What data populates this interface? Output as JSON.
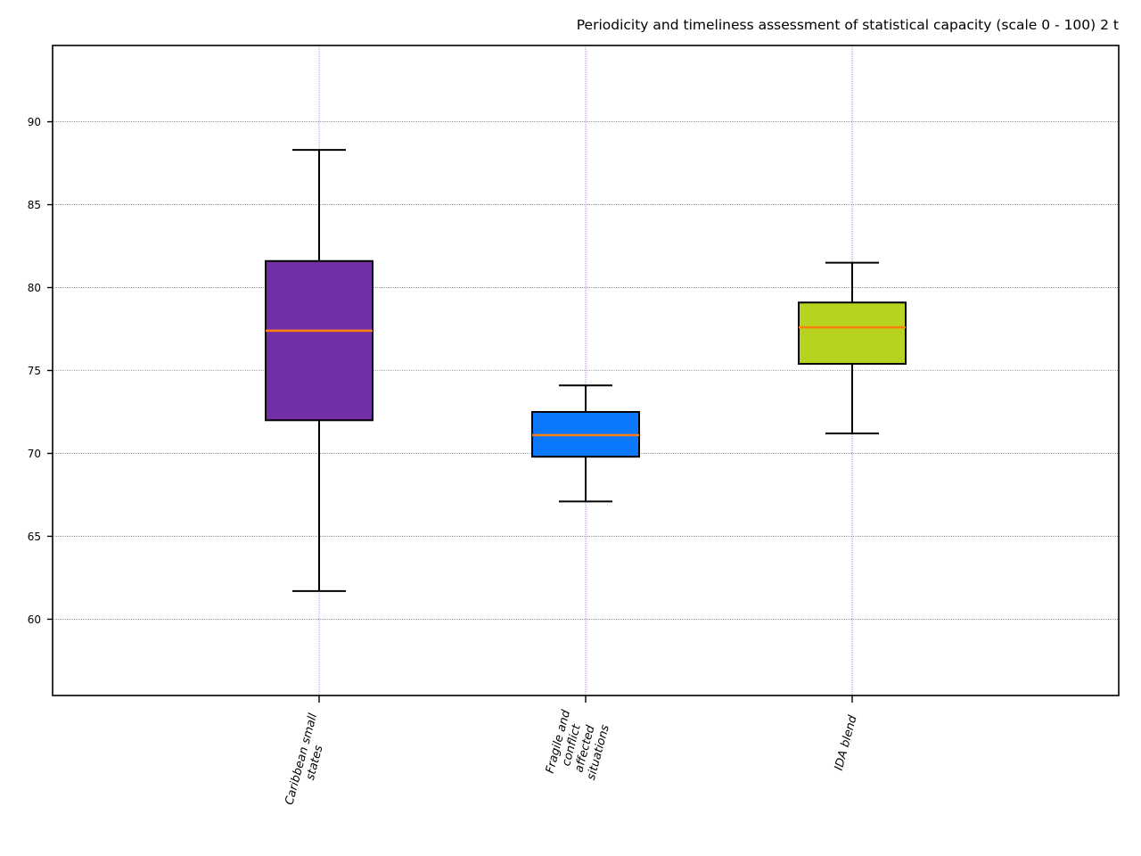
{
  "chart_data": {
    "type": "box",
    "title": "Periodicity and timeliness assessment of statistical capacity (scale 0 - 100) 2 t",
    "xlabel": "",
    "ylabel": "",
    "ylim": [
      55.4,
      94.6
    ],
    "yticks": [
      60,
      65,
      70,
      75,
      80,
      85,
      90
    ],
    "grid": true,
    "grid_color": "#9c2bd6",
    "median_color": "#ff7f0e",
    "categories": [
      [
        "Caribbean small",
        "states"
      ],
      [
        "Fragile and",
        "conflict",
        "affected",
        "situations"
      ],
      [
        "IDA blend"
      ]
    ],
    "series": [
      {
        "whisker_low": 61.7,
        "q1": 72.0,
        "median": 77.4,
        "q3": 81.6,
        "whisker_high": 88.3,
        "color": "#7330a6"
      },
      {
        "whisker_low": 67.1,
        "q1": 69.8,
        "median": 71.1,
        "q3": 72.5,
        "whisker_high": 74.1,
        "color": "#0a78ff"
      },
      {
        "whisker_low": 71.2,
        "q1": 75.4,
        "median": 77.6,
        "q3": 79.1,
        "whisker_high": 81.5,
        "color": "#b8d31f"
      }
    ]
  }
}
